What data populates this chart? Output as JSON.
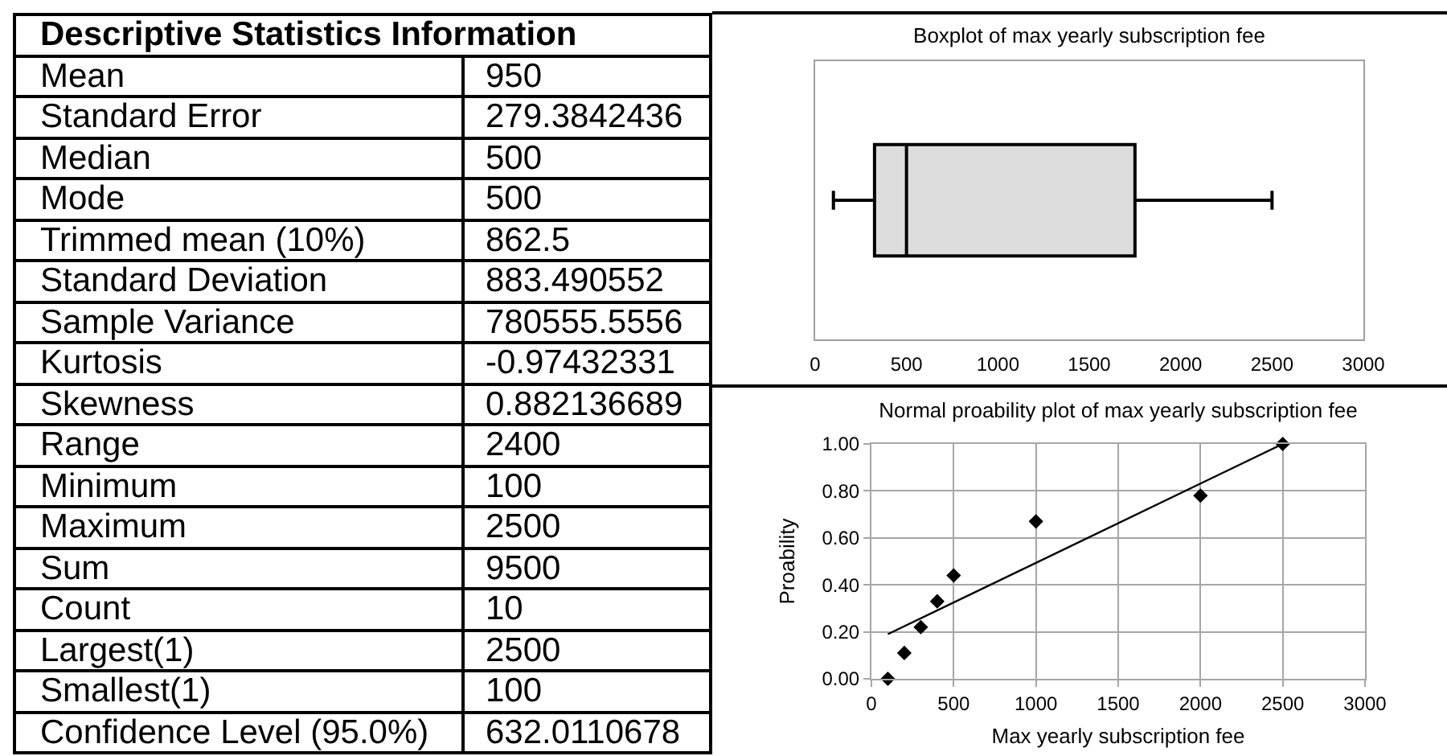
{
  "chart_data": [
    {
      "type": "other",
      "title": "Descriptive Statistics Information",
      "categories": [
        "Mean",
        "Standard Error",
        "Median",
        "Mode",
        "Trimmed mean (10%)",
        "Standard Deviation",
        "Sample Variance",
        "Kurtosis",
        "Skewness",
        "Range",
        "Minimum",
        "Maximum",
        "Sum",
        "Count",
        "Largest(1)",
        "Smallest(1)",
        "Confidence Level (95.0%)"
      ],
      "values": [
        950,
        279.3842436,
        500,
        500,
        862.5,
        883.490552,
        780555.5556,
        -0.97432331,
        0.882136689,
        2400,
        100,
        2500,
        9500,
        10,
        2500,
        100,
        632.0110678
      ],
      "data_labels": true
    },
    {
      "type": "box",
      "title": "Boxplot of max yearly subscription fee",
      "orientation": "horizontal",
      "categories": [
        null
      ],
      "boxes": [
        {
          "low": 100,
          "q1": 325,
          "median": 500,
          "q3": 1750,
          "high": 2500
        }
      ],
      "color": "#dcdcdc",
      "xlim": [
        0,
        3000
      ],
      "xticks": [
        0,
        500,
        1000,
        1500,
        2000,
        2500,
        3000
      ],
      "tick_labels": "x"
    },
    {
      "type": "scatter",
      "title": "Normal proability plot of max yearly subscription fee",
      "xlabel": "Max yearly subscription fee",
      "ylabel": "Proability",
      "xlim": [
        0,
        3000
      ],
      "xticks": [
        0,
        500,
        1000,
        1500,
        2000,
        2500,
        3000
      ],
      "ylim": [
        0,
        1
      ],
      "yticks": [
        {
          "value": 0,
          "label": "0.00"
        },
        {
          "value": 0.2,
          "label": "0.20"
        },
        {
          "value": 0.4,
          "label": "0.40"
        },
        {
          "value": 0.6,
          "label": "0.60"
        },
        {
          "value": 0.8,
          "label": "0.80"
        },
        {
          "value": 1,
          "label": "1.00"
        }
      ],
      "grid": true,
      "series": [
        {
          "color": "#000000",
          "marker": "diamond",
          "x": [
            100,
            200,
            300,
            400,
            500,
            1000,
            2000,
            2500
          ],
          "values": [
            0,
            0.11,
            0.22,
            0.33,
            0.44,
            0.67,
            0.78,
            1
          ]
        },
        {
          "type": "line",
          "color": "#000000",
          "marker": "none",
          "x": [
            100,
            2500
          ],
          "values": [
            0.19,
            1
          ]
        }
      ]
    }
  ]
}
